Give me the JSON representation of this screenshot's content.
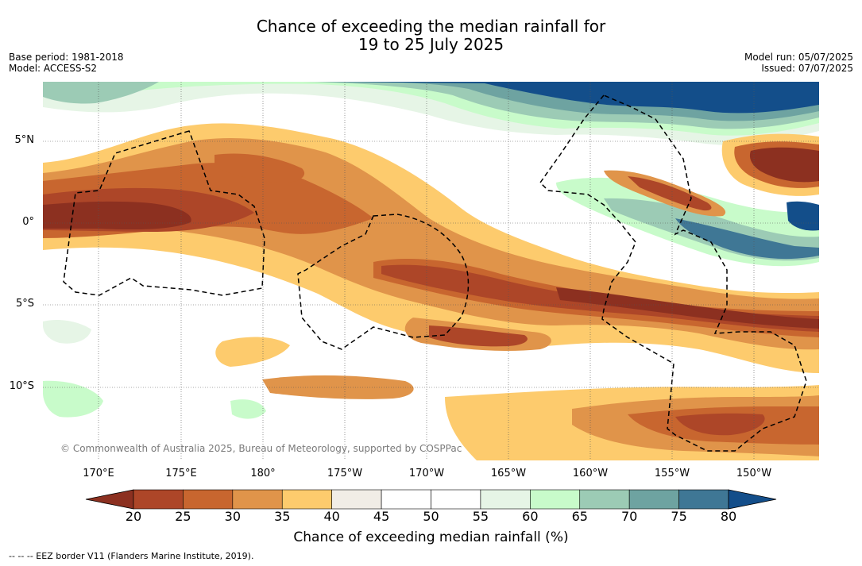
{
  "header": {
    "title_line1": "Chance of exceeding the median rainfall for",
    "title_line2": "19 to 25 July 2025",
    "base_period": "Base period: 1981-2018",
    "model": "Model: ACCESS-S2",
    "model_run": "Model run: 05/07/2025",
    "issued": "Issued: 07/07/2025"
  },
  "map": {
    "lat_labels": [
      "5°N",
      "0°",
      "5°S",
      "10°S"
    ],
    "lon_labels": [
      "170°E",
      "175°E",
      "180°",
      "175°W",
      "170°W",
      "165°W",
      "160°W",
      "155°W",
      "150°W"
    ],
    "copyright": "© Commonwealth of Australia 2025, Bureau of Meteorology, supported by COSPPac"
  },
  "colorbar": {
    "ticks": [
      "20",
      "25",
      "30",
      "35",
      "40",
      "45",
      "50",
      "55",
      "60",
      "65",
      "70",
      "75",
      "80"
    ],
    "colors": [
      "#8c3020",
      "#ad4628",
      "#c8662f",
      "#e0944a",
      "#fdcb6d",
      "#f1ede6",
      "#ffffff",
      "#ffffff",
      "#e6f5e6",
      "#c8fbca",
      "#9ccbb5",
      "#6ea3a1",
      "#3f7795",
      "#134e8a"
    ],
    "title": "Chance of exceeding median rainfall (%)"
  },
  "footer": {
    "legend": "--  --  -- EEZ border V11 (Flanders Marine Institute, 2019)."
  }
}
